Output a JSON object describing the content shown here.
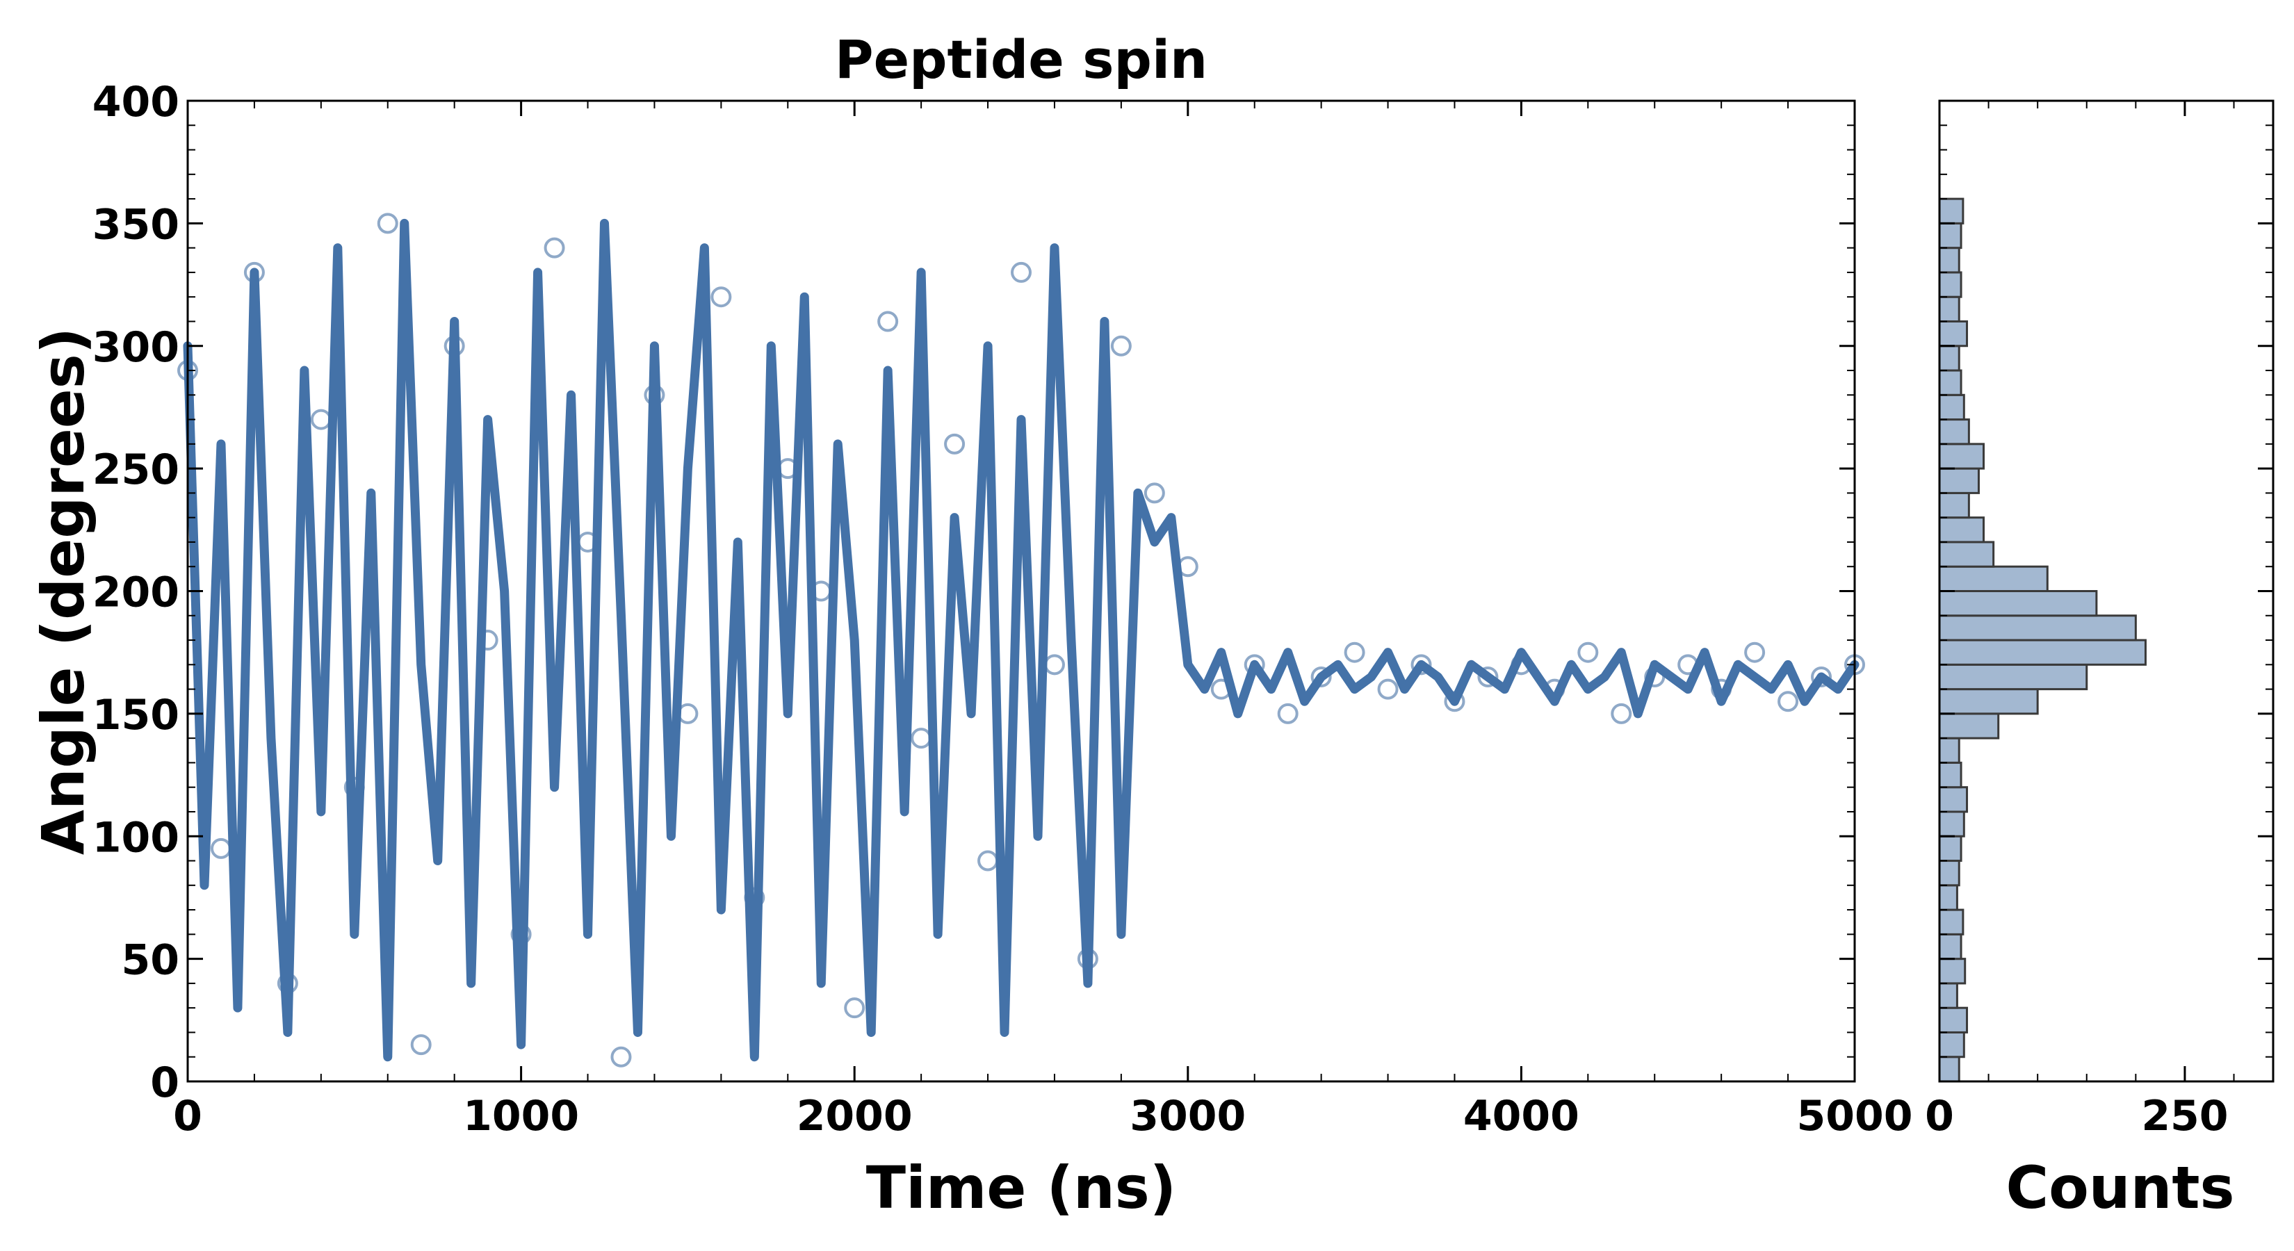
{
  "chart_data": [
    {
      "type": "scatter",
      "title": "Peptide spin",
      "xlabel": "Time (ns)",
      "ylabel": "Angle (degrees)",
      "xlim": [
        0,
        5000
      ],
      "ylim": [
        0,
        400
      ],
      "x_ticks": [
        0,
        1000,
        2000,
        3000,
        4000,
        5000
      ],
      "y_ticks": [
        0,
        50,
        100,
        150,
        200,
        250,
        300,
        350,
        400
      ],
      "grid": false,
      "legend": "none",
      "marker_color": "#8fa9c8",
      "line_color": "#4472a8",
      "series": [
        {
          "kind": "markers",
          "style": "open-circle",
          "x": [
            0,
            100,
            200,
            300,
            400,
            500,
            600,
            700,
            800,
            900,
            1000,
            1100,
            1200,
            1300,
            1400,
            1500,
            1600,
            1700,
            1800,
            1900,
            2000,
            2100,
            2200,
            2300,
            2400,
            2500,
            2600,
            2700,
            2800,
            2900,
            3000,
            3100,
            3200,
            3300,
            3400,
            3500,
            3600,
            3700,
            3800,
            3900,
            4000,
            4100,
            4200,
            4300,
            4400,
            4500,
            4600,
            4700,
            4800,
            4900,
            5000
          ],
          "y": [
            290,
            95,
            330,
            40,
            270,
            120,
            350,
            15,
            300,
            180,
            60,
            340,
            220,
            10,
            280,
            150,
            320,
            75,
            250,
            200,
            30,
            310,
            140,
            260,
            90,
            330,
            170,
            50,
            300,
            240,
            210,
            160,
            170,
            150,
            165,
            175,
            160,
            170,
            155,
            165,
            170,
            160,
            175,
            150,
            165,
            170,
            160,
            175,
            155,
            165,
            170
          ]
        },
        {
          "kind": "line",
          "x": [
            0,
            50,
            100,
            150,
            200,
            250,
            300,
            350,
            400,
            450,
            500,
            550,
            600,
            650,
            700,
            750,
            800,
            850,
            900,
            950,
            1000,
            1050,
            1100,
            1150,
            1200,
            1250,
            1300,
            1350,
            1400,
            1450,
            1500,
            1550,
            1600,
            1650,
            1700,
            1750,
            1800,
            1850,
            1900,
            1950,
            2000,
            2050,
            2100,
            2150,
            2200,
            2250,
            2300,
            2350,
            2400,
            2450,
            2500,
            2550,
            2600,
            2650,
            2700,
            2750,
            2800,
            2850,
            2900,
            2950,
            3000,
            3050,
            3100,
            3150,
            3200,
            3250,
            3300,
            3350,
            3400,
            3450,
            3500,
            3550,
            3600,
            3650,
            3700,
            3750,
            3800,
            3850,
            3900,
            3950,
            4000,
            4050,
            4100,
            4150,
            4200,
            4250,
            4300,
            4350,
            4400,
            4450,
            4500,
            4550,
            4600,
            4650,
            4700,
            4750,
            4800,
            4850,
            4900,
            4950,
            5000
          ],
          "y": [
            300,
            80,
            260,
            30,
            330,
            140,
            20,
            290,
            110,
            340,
            60,
            240,
            10,
            350,
            170,
            90,
            310,
            40,
            270,
            200,
            15,
            330,
            120,
            280,
            60,
            350,
            190,
            20,
            300,
            100,
            250,
            340,
            70,
            220,
            10,
            300,
            150,
            320,
            40,
            260,
            180,
            20,
            290,
            110,
            330,
            60,
            230,
            150,
            300,
            20,
            270,
            100,
            340,
            180,
            40,
            310,
            60,
            240,
            220,
            230,
            170,
            160,
            175,
            150,
            170,
            160,
            175,
            155,
            165,
            170,
            160,
            165,
            175,
            160,
            170,
            165,
            155,
            170,
            165,
            160,
            175,
            165,
            155,
            170,
            160,
            165,
            175,
            150,
            170,
            165,
            160,
            175,
            155,
            170,
            165,
            160,
            170,
            155,
            165,
            160,
            170
          ]
        }
      ]
    },
    {
      "type": "bar",
      "orientation": "horizontal",
      "xlabel": "Counts",
      "ylabel": "",
      "xlim": [
        0,
        340
      ],
      "x_ticks": [
        0,
        250
      ],
      "ylim": [
        0,
        400
      ],
      "bar_color": "#a3b8d1",
      "bar_edge": "#3a3a3a",
      "bins": [
        0,
        10,
        20,
        30,
        40,
        50,
        60,
        70,
        80,
        90,
        100,
        110,
        120,
        130,
        140,
        150,
        160,
        170,
        180,
        190,
        200,
        210,
        220,
        230,
        240,
        250,
        260,
        270,
        280,
        290,
        300,
        310,
        320,
        330,
        340,
        350
      ],
      "values": [
        20,
        25,
        28,
        18,
        26,
        22,
        24,
        18,
        20,
        22,
        25,
        28,
        22,
        20,
        60,
        100,
        150,
        210,
        200,
        160,
        110,
        55,
        45,
        30,
        40,
        45,
        30,
        25,
        22,
        20,
        28,
        20,
        22,
        20,
        22,
        24
      ]
    }
  ]
}
